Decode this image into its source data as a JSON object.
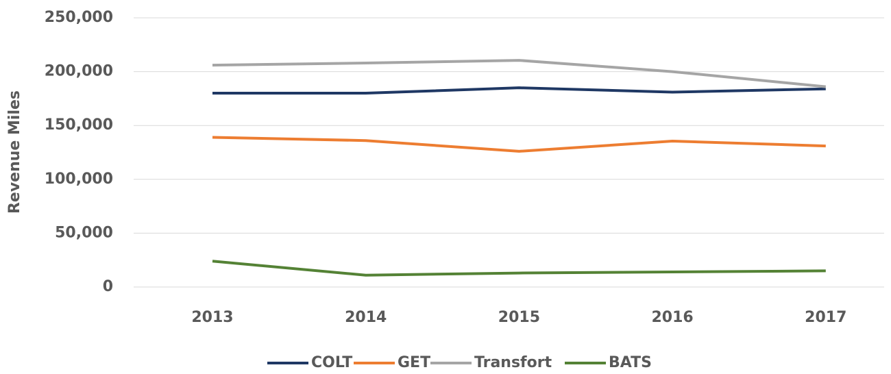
{
  "chart_data": {
    "type": "line",
    "y_axis_label": "Revenue Miles",
    "categories": [
      "2013",
      "2014",
      "2015",
      "2016",
      "2017"
    ],
    "series": [
      {
        "name": "COLT",
        "color": "#1f3864",
        "values": [
          180000,
          180000,
          185000,
          181000,
          184000
        ]
      },
      {
        "name": "GET",
        "color": "#ed7d31",
        "values": [
          139000,
          136000,
          126000,
          135500,
          131000
        ]
      },
      {
        "name": "Transfort",
        "color": "#a5a5a5",
        "values": [
          206000,
          208000,
          210500,
          200000,
          186000
        ]
      },
      {
        "name": "BATS",
        "color": "#548235",
        "values": [
          24000,
          11000,
          13000,
          14000,
          15000
        ]
      }
    ],
    "ylim": [
      0,
      250000
    ],
    "yticks": [
      0,
      {
        "value": 50000,
        "label": "50,000"
      },
      {
        "value": 100000,
        "label": "100,000"
      },
      {
        "value": 150000,
        "label": "150,000"
      },
      {
        "value": 200000,
        "label": "200,000"
      },
      {
        "value": 250000,
        "label": "250,000"
      }
    ],
    "grid": true,
    "legend": "bottom"
  }
}
